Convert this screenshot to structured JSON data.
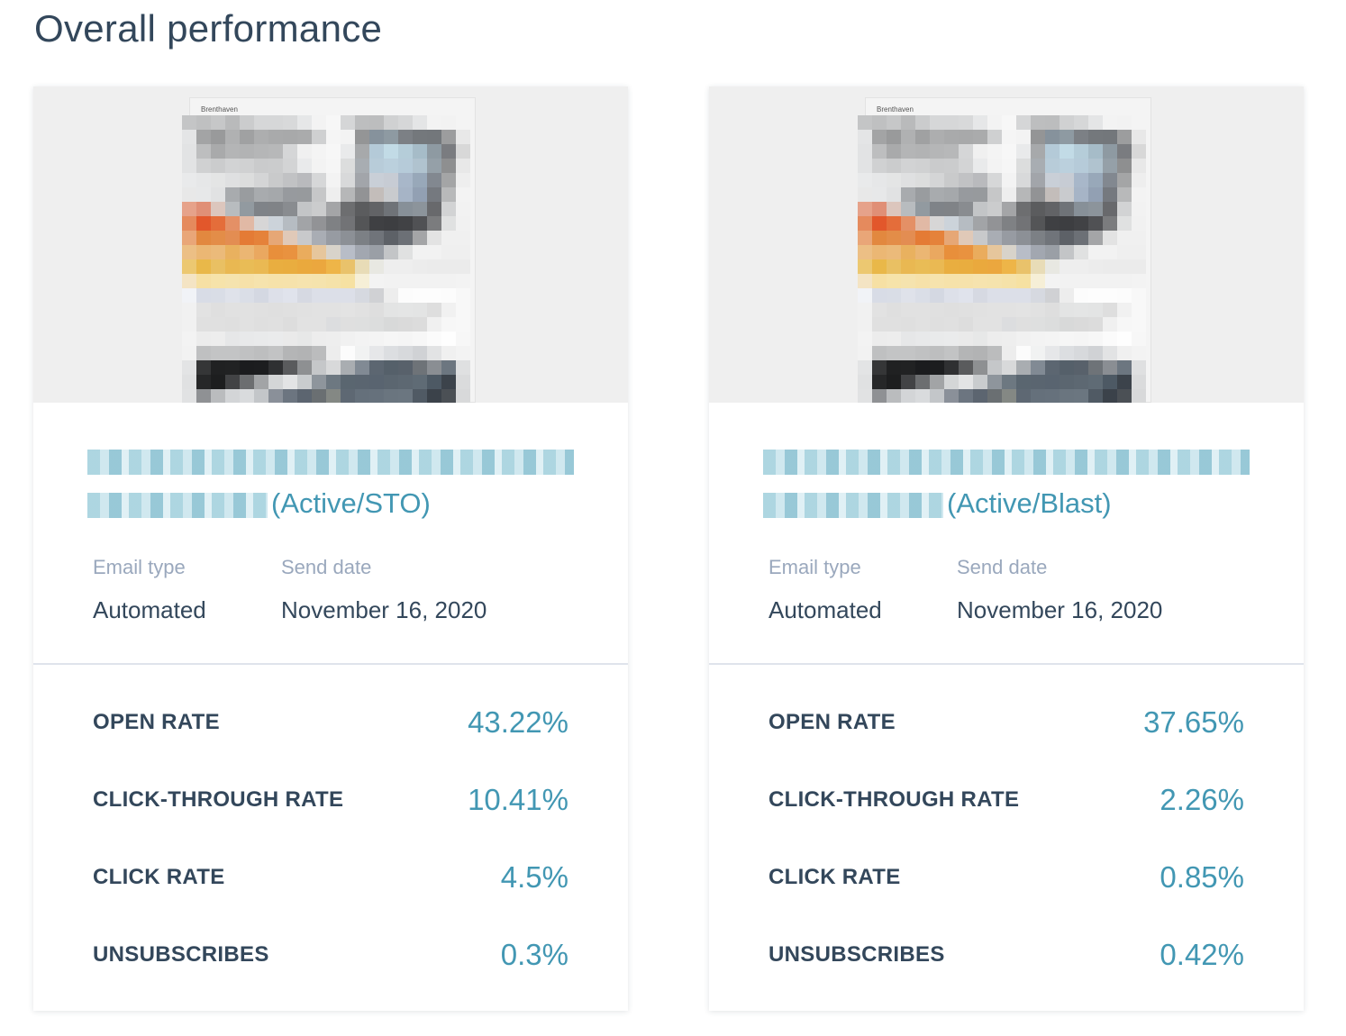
{
  "page": {
    "title": "Overall performance"
  },
  "colors": {
    "heading": "#33475b",
    "accent": "#4297b3",
    "muted_label": "#9aa8bd",
    "divider": "#dfe3eb",
    "thumb_bg": "#efefef"
  },
  "cards": [
    {
      "thumbnail": {
        "logo_text": "Brenthaven",
        "pixelated": true
      },
      "email_name": {
        "redacted": true,
        "suffix": "(Active/STO)"
      },
      "meta": {
        "email_type_label": "Email type",
        "email_type_value": "Automated",
        "send_date_label": "Send date",
        "send_date_value": "November 16, 2020"
      },
      "metrics": [
        {
          "label": "OPEN RATE",
          "value": "43.22%"
        },
        {
          "label": "CLICK-THROUGH RATE",
          "value": "10.41%"
        },
        {
          "label": "CLICK RATE",
          "value": "4.5%"
        },
        {
          "label": "UNSUBSCRIBES",
          "value": "0.3%"
        }
      ]
    },
    {
      "thumbnail": {
        "logo_text": "Brenthaven",
        "pixelated": true
      },
      "email_name": {
        "redacted": true,
        "suffix": "(Active/Blast)"
      },
      "meta": {
        "email_type_label": "Email type",
        "email_type_value": "Automated",
        "send_date_label": "Send date",
        "send_date_value": "November 16, 2020"
      },
      "metrics": [
        {
          "label": "OPEN RATE",
          "value": "37.65%"
        },
        {
          "label": "CLICK-THROUGH RATE",
          "value": "2.26%"
        },
        {
          "label": "CLICK RATE",
          "value": "0.85%"
        },
        {
          "label": "UNSUBSCRIBES",
          "value": "0.42%"
        }
      ]
    }
  ]
}
